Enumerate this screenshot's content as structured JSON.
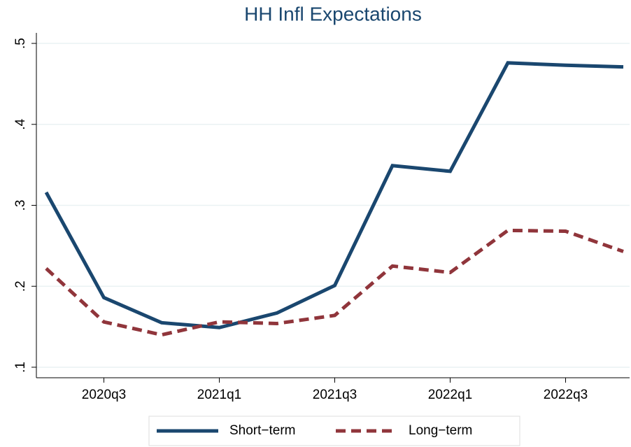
{
  "chart_data": {
    "type": "line",
    "title": "HH Infl Expectations",
    "categories": [
      null,
      "2020q3",
      null,
      "2021q1",
      null,
      "2021q3",
      null,
      "2022q1",
      null,
      "2022q3",
      null
    ],
    "series": [
      {
        "name": "Short−term",
        "color": "#1a476f",
        "dash": "solid",
        "values": [
          0.316,
          0.186,
          0.155,
          0.149,
          0.167,
          0.201,
          0.349,
          0.342,
          0.476,
          0.473,
          0.471
        ]
      },
      {
        "name": "Long−term",
        "color": "#90353b",
        "dash": "dash",
        "values": [
          0.222,
          0.156,
          0.14,
          0.156,
          0.154,
          0.164,
          0.225,
          0.217,
          0.269,
          0.268,
          0.243
        ]
      }
    ],
    "ylim": [
      0.087,
      0.513
    ],
    "yticks": [
      {
        "value": 0.1,
        "label": ".1"
      },
      {
        "value": 0.2,
        "label": ".2"
      },
      {
        "value": 0.3,
        "label": ".3"
      },
      {
        "value": 0.4,
        "label": ".4"
      },
      {
        "value": 0.5,
        "label": ".5"
      }
    ],
    "grid": true,
    "legend": "bottom"
  }
}
